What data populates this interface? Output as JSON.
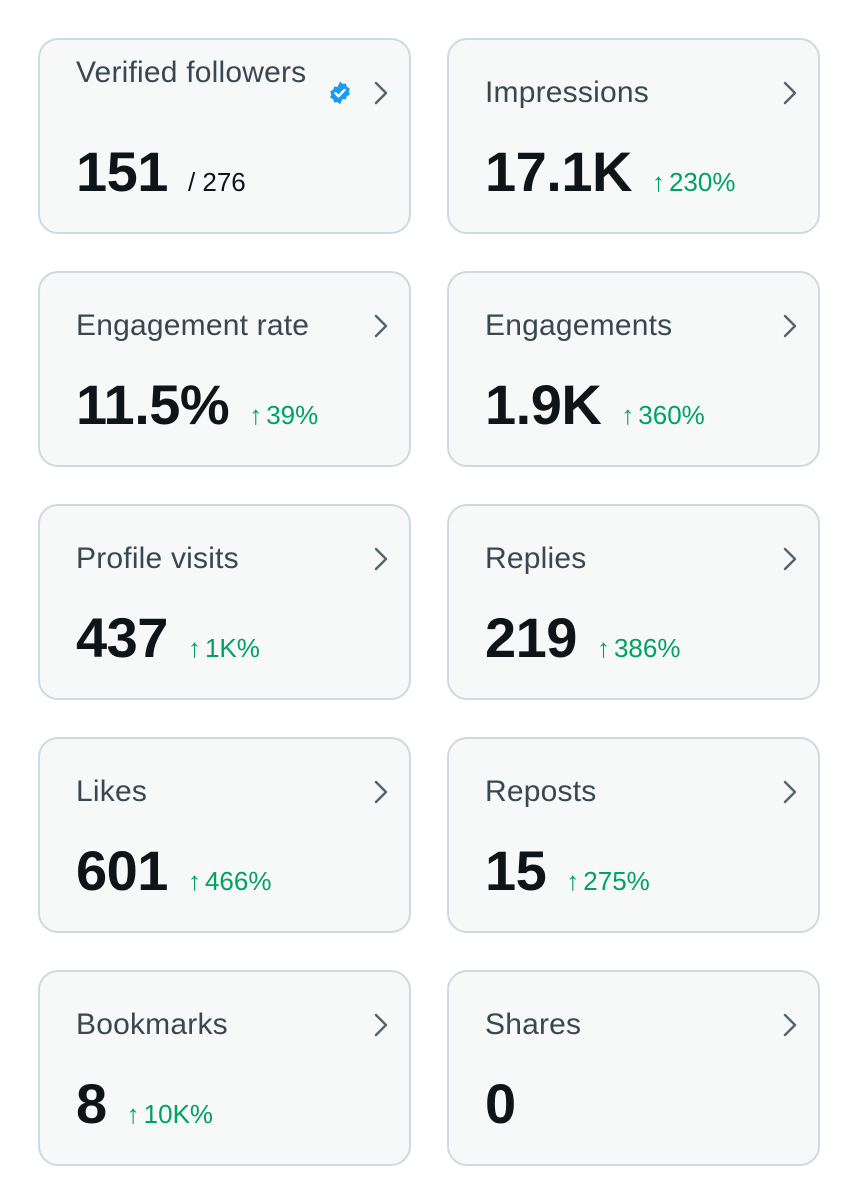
{
  "colors": {
    "card_background": "#f7f9f9",
    "card_border": "#cfd9de",
    "title_text": "#3a4650",
    "value_text": "#0f1419",
    "positive_change": "#00a164",
    "verified_badge": "#1d9bf0"
  },
  "icons": {
    "chevron": "chevron-right-icon",
    "verified": "verified-badge-icon",
    "change_arrow": "↑"
  },
  "metrics": [
    {
      "id": "verified-followers",
      "title": "Verified followers",
      "value": "151",
      "denominator": "/ 276",
      "change": "",
      "verified": true
    },
    {
      "id": "impressions",
      "title": "Impressions",
      "value": "17.1K",
      "denominator": "",
      "change": "230%"
    },
    {
      "id": "engagement-rate",
      "title": "Engagement rate",
      "value": "11.5%",
      "denominator": "",
      "change": "39%"
    },
    {
      "id": "engagements",
      "title": "Engagements",
      "value": "1.9K",
      "denominator": "",
      "change": "360%"
    },
    {
      "id": "profile-visits",
      "title": "Profile visits",
      "value": "437",
      "denominator": "",
      "change": "1K%"
    },
    {
      "id": "replies",
      "title": "Replies",
      "value": "219",
      "denominator": "",
      "change": "386%"
    },
    {
      "id": "likes",
      "title": "Likes",
      "value": "601",
      "denominator": "",
      "change": "466%"
    },
    {
      "id": "reposts",
      "title": "Reposts",
      "value": "15",
      "denominator": "",
      "change": "275%"
    },
    {
      "id": "bookmarks",
      "title": "Bookmarks",
      "value": "8",
      "denominator": "",
      "change": "10K%"
    },
    {
      "id": "shares",
      "title": "Shares",
      "value": "0",
      "denominator": "",
      "change": ""
    }
  ]
}
